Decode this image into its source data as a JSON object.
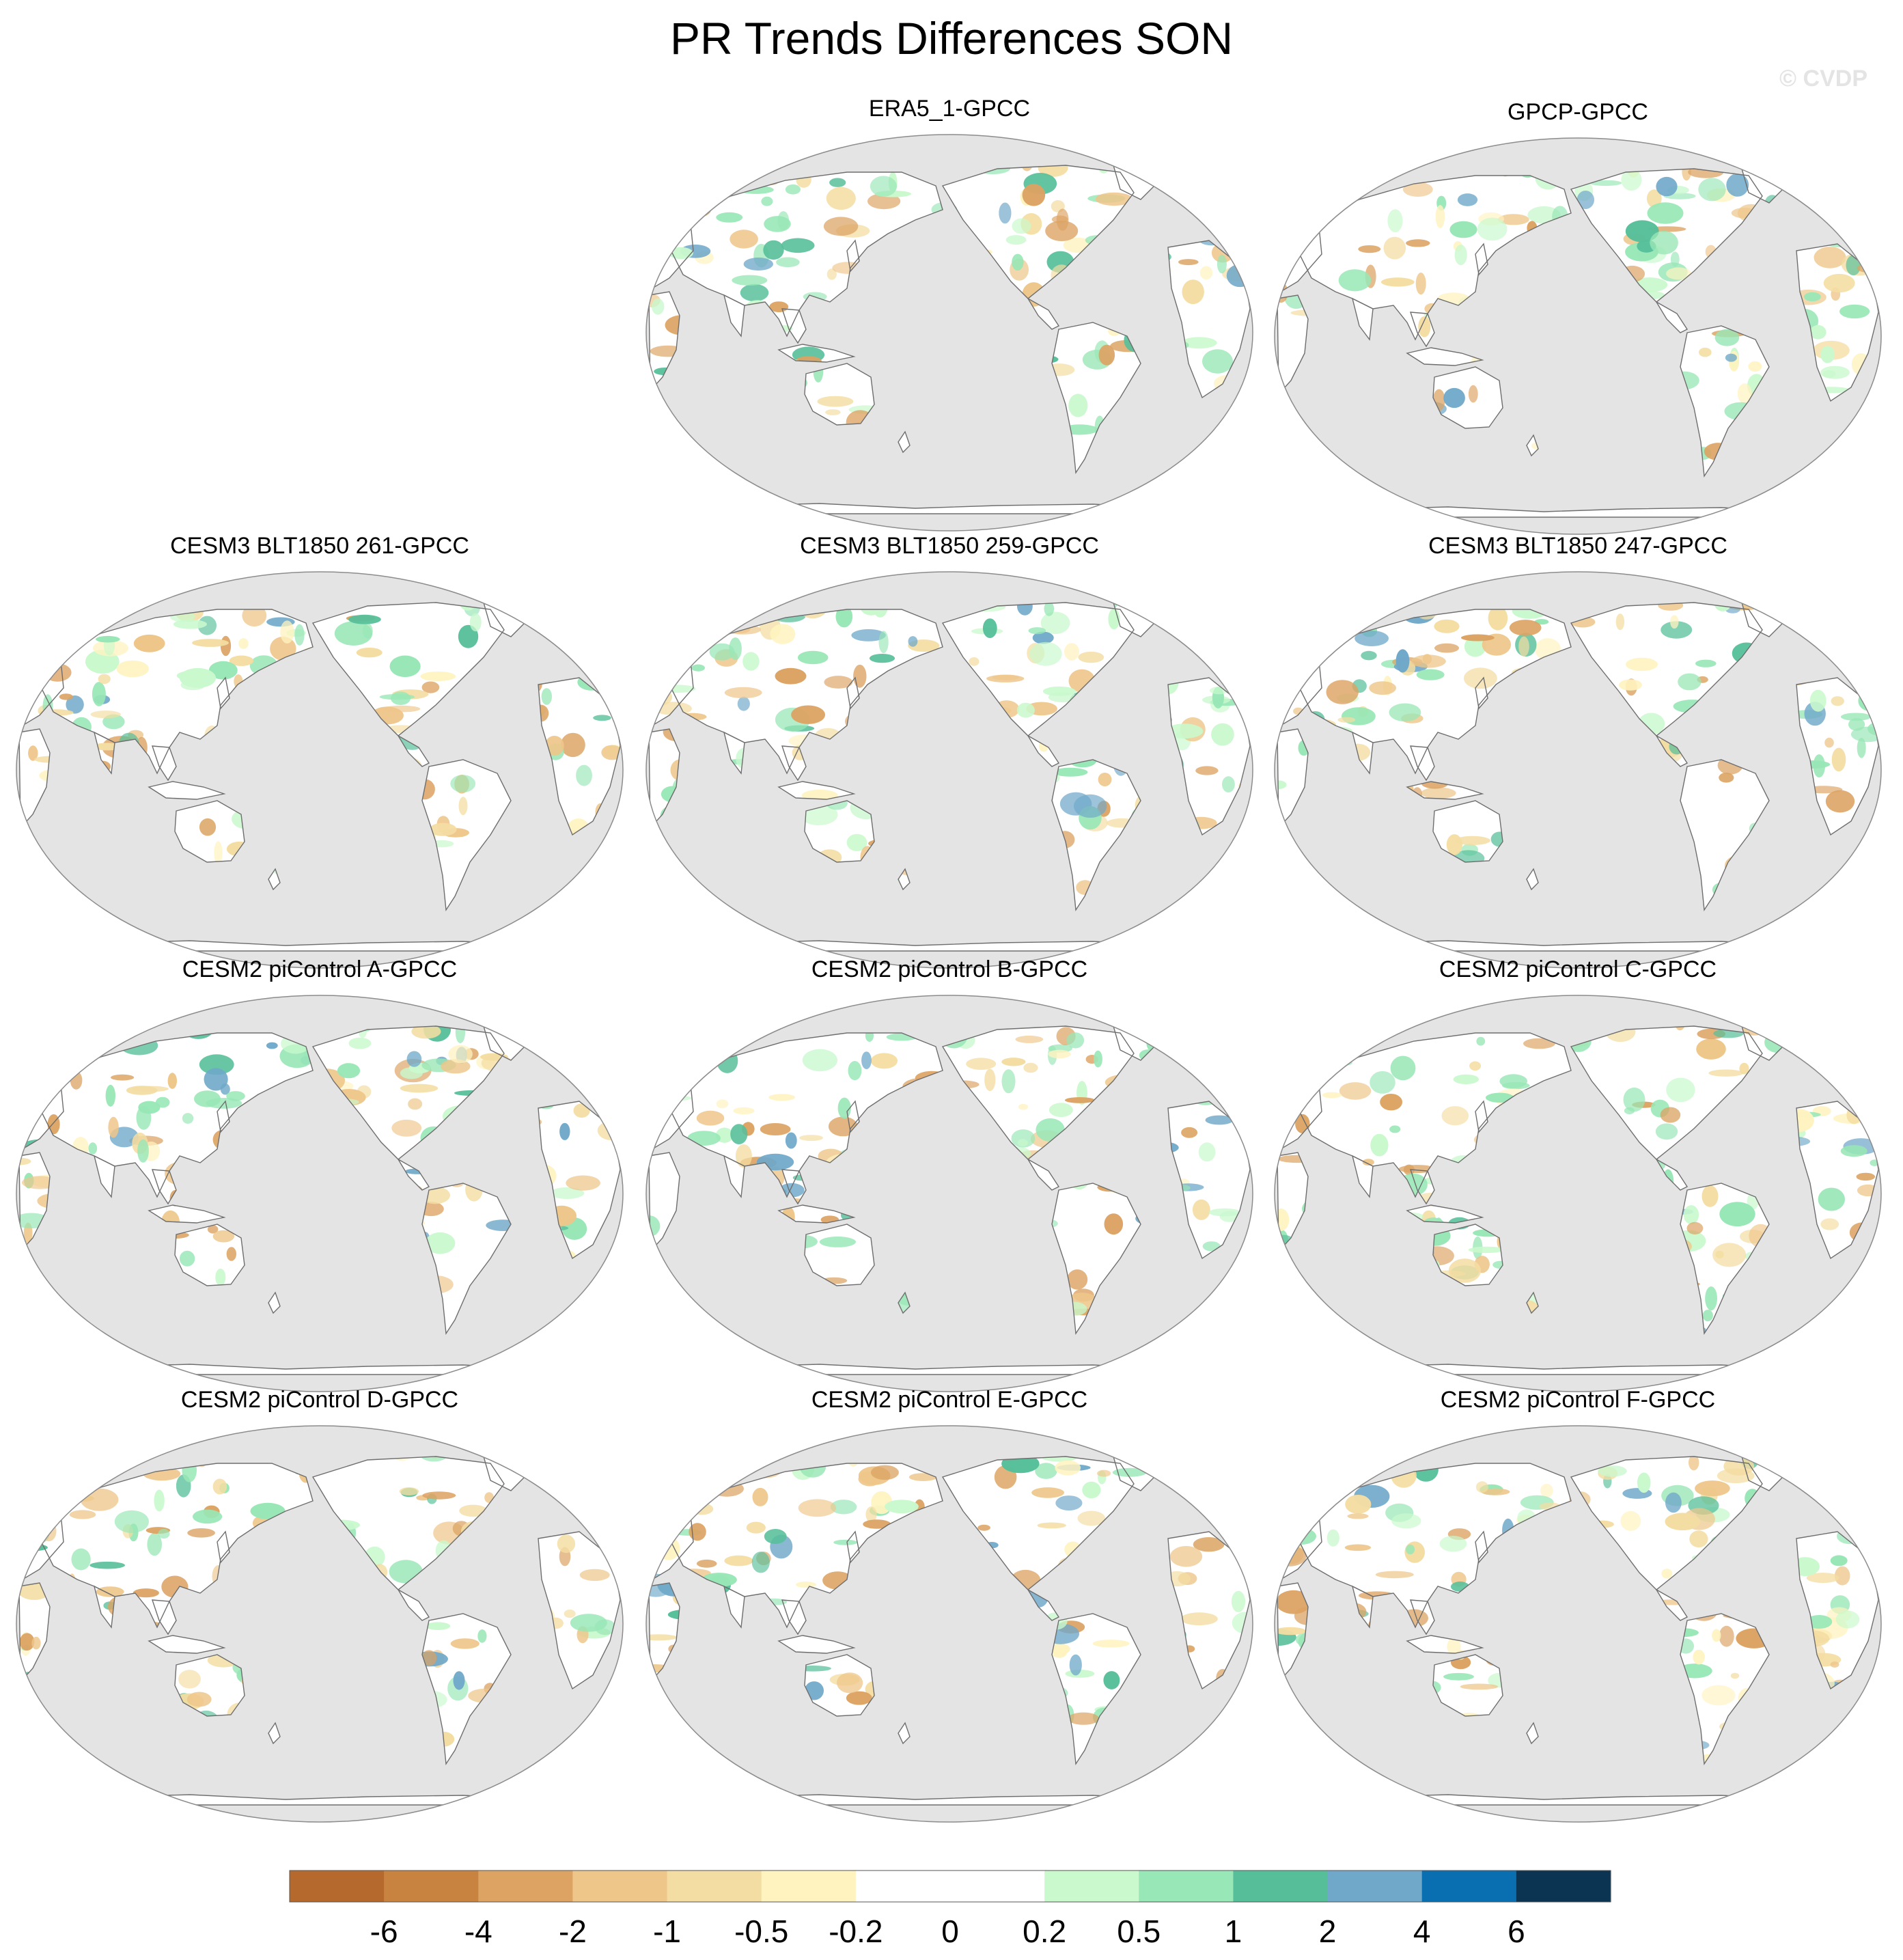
{
  "title": "PR Trends Differences SON",
  "watermark": "© CVDP",
  "panels": [
    {
      "label": "ERA5_1-GPCC"
    },
    {
      "label": "GPCP-GPCC"
    },
    {
      "label": "CESM3 BLT1850 261-GPCC"
    },
    {
      "label": "CESM3 BLT1850 259-GPCC"
    },
    {
      "label": "CESM3 BLT1850 247-GPCC"
    },
    {
      "label": "CESM2 piControl A-GPCC"
    },
    {
      "label": "CESM2 piControl B-GPCC"
    },
    {
      "label": "CESM2 piControl C-GPCC"
    },
    {
      "label": "CESM2 piControl D-GPCC"
    },
    {
      "label": "CESM2 piControl E-GPCC"
    },
    {
      "label": "CESM2 piControl F-GPCC"
    }
  ],
  "colorbar": {
    "levels": [
      "-6",
      "-4",
      "-2",
      "-1",
      "-0.5",
      "-0.2",
      "0",
      "0.2",
      "0.5",
      "1",
      "2",
      "4",
      "6"
    ],
    "colors": [
      "#b5692c",
      "#c98341",
      "#dca363",
      "#eec68a",
      "#f4dda2",
      "#fff3c0",
      "#ffffff",
      "#ffffff",
      "#c9f9cd",
      "#98e7b6",
      "#56bf9a",
      "#6fa8c9",
      "#0a6fb1",
      "#0a3452"
    ]
  },
  "map_colors": {
    "ocean": "#e4e4e4",
    "land": "#ffffff",
    "coast": "#6e6e6e"
  }
}
